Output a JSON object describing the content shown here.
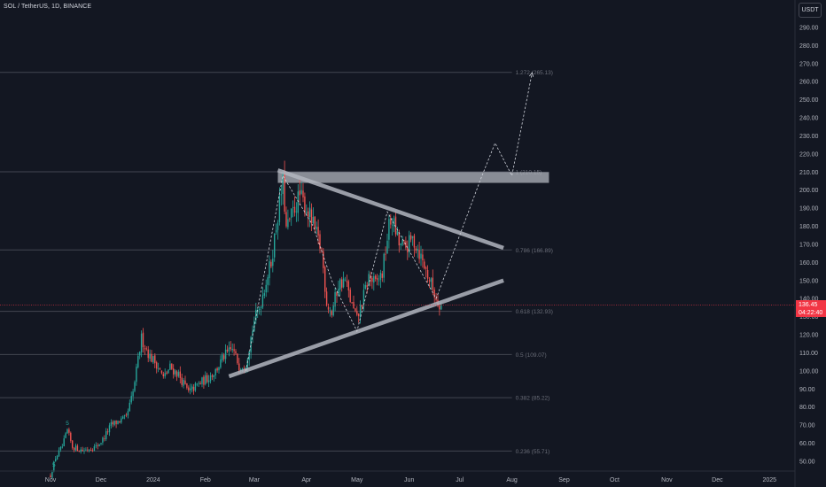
{
  "header": {
    "title": "SOL / TetherUS, 1D, BINANCE",
    "currency_button": "USDT"
  },
  "price_badge": {
    "price": "136.45",
    "countdown": "04:22:40"
  },
  "colors": {
    "background": "#131722",
    "up": "#26a69a",
    "down": "#ef5350",
    "pattern": "#b2b5be",
    "fib_line": "#434651",
    "current_price": "#f23645"
  },
  "chart_data": {
    "type": "candlestick",
    "symbol": "SOL / TetherUS",
    "timeframe": "1D",
    "exchange": "BINANCE",
    "y_axis": {
      "min": 45,
      "max": 297,
      "ticks": [
        50,
        60,
        70,
        80,
        90,
        100,
        110,
        120,
        130,
        140,
        150,
        160,
        170,
        180,
        190,
        200,
        210,
        220,
        230,
        240,
        250,
        260,
        270,
        280,
        290
      ],
      "tick_labels": [
        "50.00",
        "60.00",
        "70.00",
        "80.00",
        "90.00",
        "100.00",
        "110.00",
        "120.00",
        "130.00",
        "140.00",
        "150.00",
        "160.00",
        "170.00",
        "180.00",
        "190.00",
        "200.00",
        "210.00",
        "220.00",
        "230.00",
        "240.00",
        "250.00",
        "260.00",
        "270.00",
        "280.00",
        "290.00"
      ]
    },
    "x_axis": {
      "start": "2023-11-01",
      "end": "2025-01-08",
      "ticks": [
        {
          "date": "2023-11-01",
          "label": "Nov"
        },
        {
          "date": "2023-12-01",
          "label": "Dec"
        },
        {
          "date": "2024-01-01",
          "label": "2024"
        },
        {
          "date": "2024-02-01",
          "label": "Feb"
        },
        {
          "date": "2024-03-01",
          "label": "Mar"
        },
        {
          "date": "2024-04-01",
          "label": "Apr"
        },
        {
          "date": "2024-05-01",
          "label": "May"
        },
        {
          "date": "2024-06-01",
          "label": "Jun"
        },
        {
          "date": "2024-07-01",
          "label": "Jul"
        },
        {
          "date": "2024-08-01",
          "label": "Aug"
        },
        {
          "date": "2024-09-01",
          "label": "Sep"
        },
        {
          "date": "2024-10-01",
          "label": "Oct"
        },
        {
          "date": "2024-11-01",
          "label": "Nov"
        },
        {
          "date": "2024-12-01",
          "label": "Dec"
        },
        {
          "date": "2025-01-01",
          "label": "2025"
        }
      ]
    },
    "price_path": [
      [
        "2023-11-01",
        42
      ],
      [
        "2023-11-04",
        52
      ],
      [
        "2023-11-08",
        58
      ],
      [
        "2023-11-11",
        67
      ],
      [
        "2023-11-14",
        58
      ],
      [
        "2023-11-20",
        56
      ],
      [
        "2023-11-28",
        58
      ],
      [
        "2023-12-02",
        62
      ],
      [
        "2023-12-07",
        70
      ],
      [
        "2023-12-11",
        72
      ],
      [
        "2023-12-16",
        74
      ],
      [
        "2023-12-20",
        88
      ],
      [
        "2023-12-25",
        118
      ],
      [
        "2023-12-30",
        108
      ],
      [
        "2024-01-03",
        104
      ],
      [
        "2024-01-07",
        96
      ],
      [
        "2024-01-11",
        102
      ],
      [
        "2024-01-16",
        98
      ],
      [
        "2024-01-22",
        88
      ],
      [
        "2024-01-27",
        92
      ],
      [
        "2024-02-02",
        96
      ],
      [
        "2024-02-07",
        100
      ],
      [
        "2024-02-12",
        108
      ],
      [
        "2024-02-17",
        112
      ],
      [
        "2024-02-21",
        103
      ],
      [
        "2024-02-25",
        104
      ],
      [
        "2024-03-01",
        128
      ],
      [
        "2024-03-04",
        135
      ],
      [
        "2024-03-08",
        150
      ],
      [
        "2024-03-11",
        160
      ],
      [
        "2024-03-14",
        180
      ],
      [
        "2024-03-18",
        205
      ],
      [
        "2024-03-20",
        178
      ],
      [
        "2024-03-24",
        188
      ],
      [
        "2024-03-28",
        197
      ],
      [
        "2024-04-02",
        188
      ],
      [
        "2024-04-06",
        178
      ],
      [
        "2024-04-10",
        166
      ],
      [
        "2024-04-13",
        138
      ],
      [
        "2024-04-16",
        132
      ],
      [
        "2024-04-20",
        148
      ],
      [
        "2024-04-24",
        150
      ],
      [
        "2024-04-28",
        136
      ],
      [
        "2024-05-01",
        128
      ],
      [
        "2024-05-04",
        138
      ],
      [
        "2024-05-08",
        152
      ],
      [
        "2024-05-12",
        148
      ],
      [
        "2024-05-16",
        154
      ],
      [
        "2024-05-20",
        180
      ],
      [
        "2024-05-22",
        184
      ],
      [
        "2024-05-26",
        170
      ],
      [
        "2024-05-30",
        168
      ],
      [
        "2024-06-03",
        173
      ],
      [
        "2024-06-06",
        168
      ],
      [
        "2024-06-10",
        158
      ],
      [
        "2024-06-14",
        148
      ],
      [
        "2024-06-17",
        140
      ],
      [
        "2024-06-20",
        136.45
      ]
    ],
    "current_price": 136.45,
    "fib_levels": [
      {
        "ratio": "1.272",
        "price": 265.13,
        "label": "1.272 (265.13)"
      },
      {
        "ratio": "1",
        "price": 210.15,
        "label": "1 (210.15)"
      },
      {
        "ratio": "0.786",
        "price": 166.89,
        "label": "0.786 (166.89)"
      },
      {
        "ratio": "0.618",
        "price": 132.93,
        "label": "0.618 (132.93)"
      },
      {
        "ratio": "0.5",
        "price": 109.07,
        "label": "0.5 (109.07)"
      },
      {
        "ratio": "0.382",
        "price": 85.22,
        "label": "0.382 (85.22)"
      },
      {
        "ratio": "0.236",
        "price": 55.71,
        "label": "0.236 (55.71)"
      }
    ],
    "fib_start_date": "2023-11-01",
    "fib_end_date": "2024-08-01",
    "resistance_zone": {
      "date_start": "2024-03-15",
      "date_end": "2024-08-23",
      "price_low": 204,
      "price_high": 210
    },
    "triangle_upper": [
      [
        "2024-03-15",
        211
      ],
      [
        "2024-07-27",
        168
      ]
    ],
    "triangle_lower": [
      [
        "2024-02-15",
        97
      ],
      [
        "2024-07-27",
        150
      ]
    ],
    "dashed_paths": [
      [
        [
          "2024-02-25",
          100
        ],
        [
          "2024-03-18",
          208
        ],
        [
          "2024-04-05",
          180
        ],
        [
          "2024-04-16",
          150
        ],
        [
          "2024-05-01",
          122
        ],
        [
          "2024-05-19",
          188
        ],
        [
          "2024-06-17",
          140
        ]
      ],
      [
        [
          "2024-06-17",
          140
        ],
        [
          "2024-07-13",
          205
        ],
        [
          "2024-07-22",
          226
        ],
        [
          "2024-08-01",
          208
        ],
        [
          "2024-08-13",
          265
        ]
      ]
    ],
    "markers": [
      {
        "date": "2023-11-03",
        "price": 45,
        "label": "5"
      },
      {
        "date": "2023-11-11",
        "price": 68,
        "label": "5"
      }
    ]
  }
}
